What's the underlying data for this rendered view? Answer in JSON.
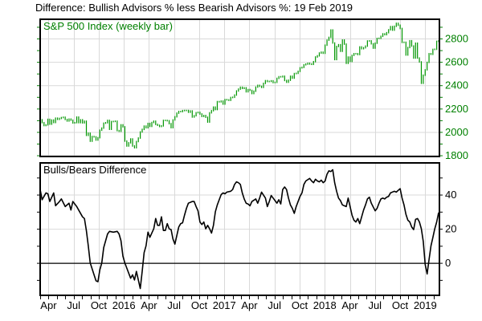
{
  "title": "Difference: Bullish Advisors % less Bearish Advisors %: 19 Feb 2019",
  "panels": {
    "sp500": {
      "label": "S&P 500 Index (weekly bar)",
      "label_color": "#008000"
    },
    "bulls_bears": {
      "label": "Bulls/Bears Difference",
      "label_color": "#000000"
    }
  },
  "x_axis": {
    "labels": [
      "Apr",
      "Jul",
      "Oct",
      "2016",
      "Apr",
      "Jul",
      "Oct",
      "2017",
      "Apr",
      "Jul",
      "Oct",
      "2018",
      "Apr",
      "Jul",
      "Oct",
      "2019"
    ],
    "label_months": [
      1,
      4,
      7,
      10,
      13,
      16,
      19,
      22,
      25,
      28,
      31,
      34,
      37,
      40,
      43,
      46
    ],
    "months_total": 48,
    "weeks_total": 207,
    "weeks_per_month": 4.348
  },
  "colors": {
    "grid": "#d9d9d9",
    "border": "#000000",
    "background": "#ffffff"
  },
  "chart_data": [
    {
      "type": "bar",
      "name": "S&P 500 Index (weekly bar)",
      "x_unit": "week (Mar 2015 - 19 Feb 2019)",
      "y_min": 1790,
      "y_max": 2965,
      "y_labels": [
        1800,
        2000,
        2200,
        2400,
        2600,
        2800
      ],
      "y_minor_step": 100,
      "color": "#009600",
      "axis_color": "#008000",
      "values": [
        2104,
        2080,
        2055,
        2061,
        2108,
        2067,
        2102,
        2081,
        2118,
        2108,
        2116,
        2123,
        2126,
        2107,
        2094,
        2110,
        2101,
        2077,
        2080,
        2127,
        2080,
        2104,
        2078,
        2092,
        1971,
        1989,
        1921,
        1961,
        1958,
        1931,
        1951,
        2015,
        2033,
        2075,
        2079,
        2099,
        2023,
        2089,
        2090,
        2092,
        2012,
        2006,
        2061,
        2044,
        1922,
        1880,
        1907,
        1940,
        1880,
        1865,
        1918,
        1948,
        2000,
        2022,
        2050,
        2036,
        2073,
        2048,
        2081,
        2092,
        2065,
        2057,
        2047,
        2052,
        2099,
        2099,
        2096,
        2071,
        2037,
        2103,
        2130,
        2161,
        2175,
        2174,
        2183,
        2184,
        2184,
        2169,
        2180,
        2128,
        2139,
        2165,
        2168,
        2154,
        2133,
        2141,
        2126,
        2085,
        2164,
        2182,
        2213,
        2192,
        2260,
        2258,
        2264,
        2239,
        2277,
        2275,
        2271,
        2295,
        2297,
        2316,
        2351,
        2367,
        2383,
        2373,
        2378,
        2344,
        2363,
        2356,
        2329,
        2349,
        2384,
        2399,
        2391,
        2382,
        2416,
        2439,
        2432,
        2433,
        2438,
        2423,
        2425,
        2459,
        2473,
        2472,
        2477,
        2441,
        2426,
        2443,
        2477,
        2461,
        2500,
        2502,
        2519,
        2549,
        2553,
        2575,
        2581,
        2588,
        2582,
        2579,
        2602,
        2642,
        2652,
        2676,
        2683,
        2674,
        2743,
        2786,
        2810,
        2873,
        2762,
        2620,
        2732,
        2747,
        2691,
        2787,
        2752,
        2588,
        2641,
        2604,
        2656,
        2670,
        2670,
        2663,
        2728,
        2713,
        2721,
        2735,
        2779,
        2780,
        2755,
        2718,
        2760,
        2801,
        2802,
        2819,
        2840,
        2833,
        2850,
        2875,
        2902,
        2872,
        2905,
        2930,
        2914,
        2886,
        2767,
        2768,
        2659,
        2723,
        2781,
        2736,
        2633,
        2760,
        2633,
        2600,
        2417,
        2486,
        2532,
        2596,
        2670,
        2665,
        2707,
        2708,
        2776,
        2780
      ]
    },
    {
      "type": "line",
      "name": "Bulls/Bears Difference",
      "x_unit": "week (Mar 2015 - 19 Feb 2019)",
      "y_min": -19,
      "y_max": 58.6,
      "y_labels": [
        0,
        20,
        40
      ],
      "y_minor_step": 10,
      "zero_line": 0,
      "color": "#000000",
      "axis_color": "#000000",
      "points": [
        [
          0,
          43
        ],
        [
          1,
          37
        ],
        [
          2,
          39
        ],
        [
          3,
          41
        ],
        [
          4,
          40.5
        ],
        [
          5,
          36
        ],
        [
          7,
          41
        ],
        [
          8,
          33.5
        ],
        [
          10,
          36
        ],
        [
          11,
          37.5
        ],
        [
          13,
          33
        ],
        [
          15,
          35
        ],
        [
          16,
          31
        ],
        [
          17,
          36
        ],
        [
          19,
          33
        ],
        [
          20,
          31
        ],
        [
          22,
          27
        ],
        [
          23,
          26
        ],
        [
          24,
          19
        ],
        [
          25,
          10
        ],
        [
          26,
          0
        ],
        [
          28,
          -7
        ],
        [
          29,
          -10.5
        ],
        [
          30,
          -11
        ],
        [
          31,
          -4
        ],
        [
          32,
          0
        ],
        [
          33,
          9
        ],
        [
          35,
          17
        ],
        [
          36,
          18.5
        ],
        [
          38,
          18
        ],
        [
          40,
          18.5
        ],
        [
          41,
          17
        ],
        [
          42,
          13
        ],
        [
          43,
          4
        ],
        [
          44,
          0
        ],
        [
          45,
          -3
        ],
        [
          47,
          -9
        ],
        [
          48,
          -7
        ],
        [
          49,
          -10
        ],
        [
          50,
          -5
        ],
        [
          52,
          -15
        ],
        [
          53,
          -5
        ],
        [
          54,
          6
        ],
        [
          55,
          10
        ],
        [
          56,
          18
        ],
        [
          57,
          15
        ],
        [
          59,
          20
        ],
        [
          60,
          26
        ],
        [
          61,
          22
        ],
        [
          62,
          22
        ],
        [
          63,
          27
        ],
        [
          64,
          19
        ],
        [
          65,
          19
        ],
        [
          66,
          23
        ],
        [
          67,
          20
        ],
        [
          68,
          19.5
        ],
        [
          69,
          14
        ],
        [
          70,
          11
        ],
        [
          71,
          16
        ],
        [
          72,
          21
        ],
        [
          73,
          23
        ],
        [
          74,
          23.5
        ],
        [
          75,
          28
        ],
        [
          76,
          32
        ],
        [
          77,
          35
        ],
        [
          79,
          36
        ],
        [
          80,
          36
        ],
        [
          81,
          33
        ],
        [
          82,
          30.5
        ],
        [
          83,
          24
        ],
        [
          84,
          22.5
        ],
        [
          85,
          24
        ],
        [
          86,
          20
        ],
        [
          87,
          22
        ],
        [
          88,
          20
        ],
        [
          89,
          17.5
        ],
        [
          90,
          22
        ],
        [
          91,
          30
        ],
        [
          92,
          34
        ],
        [
          93,
          37
        ],
        [
          94,
          40
        ],
        [
          95,
          41
        ],
        [
          96,
          40.5
        ],
        [
          97,
          41.5
        ],
        [
          99,
          42
        ],
        [
          100,
          43
        ],
        [
          101,
          46
        ],
        [
          102,
          47.5
        ],
        [
          103,
          47
        ],
        [
          104,
          46
        ],
        [
          105,
          41
        ],
        [
          106,
          37.5
        ],
        [
          107,
          35
        ],
        [
          108,
          34.5
        ],
        [
          109,
          33.5
        ],
        [
          110,
          36
        ],
        [
          112,
          37.5
        ],
        [
          113,
          35
        ],
        [
          114,
          38
        ],
        [
          115,
          41.5
        ],
        [
          117,
          38
        ],
        [
          118,
          33
        ],
        [
          119,
          36
        ],
        [
          120,
          39.5
        ],
        [
          121,
          38
        ],
        [
          122,
          36.5
        ],
        [
          123,
          35
        ],
        [
          124,
          37
        ],
        [
          125,
          34.5
        ],
        [
          126,
          43
        ],
        [
          127,
          44.5
        ],
        [
          128,
          43
        ],
        [
          129,
          38
        ],
        [
          130,
          34
        ],
        [
          131,
          32
        ],
        [
          132,
          29
        ],
        [
          133,
          33
        ],
        [
          135,
          39
        ],
        [
          136,
          41
        ],
        [
          137,
          46
        ],
        [
          138,
          48
        ],
        [
          140,
          49.5
        ],
        [
          141,
          48
        ],
        [
          142,
          47
        ],
        [
          143,
          49
        ],
        [
          144,
          48
        ],
        [
          145,
          47.5
        ],
        [
          146,
          48.5
        ],
        [
          147,
          47
        ],
        [
          148,
          48
        ],
        [
          149,
          52
        ],
        [
          150,
          54
        ],
        [
          151,
          53.5
        ],
        [
          152,
          54.6
        ],
        [
          153,
          47
        ],
        [
          154,
          42
        ],
        [
          155,
          38
        ],
        [
          156,
          36.5
        ],
        [
          157,
          34
        ],
        [
          158,
          33.5
        ],
        [
          159,
          33
        ],
        [
          160,
          38
        ],
        [
          161,
          33
        ],
        [
          162,
          28
        ],
        [
          163,
          25
        ],
        [
          164,
          24
        ],
        [
          165,
          26
        ],
        [
          166,
          23
        ],
        [
          167,
          27
        ],
        [
          168,
          31
        ],
        [
          169,
          34
        ],
        [
          170,
          37.5
        ],
        [
          171,
          38.5
        ],
        [
          172,
          35
        ],
        [
          174,
          30.5
        ],
        [
          175,
          32
        ],
        [
          176,
          35
        ],
        [
          177,
          37.5
        ],
        [
          178,
          38
        ],
        [
          179,
          37.5
        ],
        [
          180,
          38.5
        ],
        [
          181,
          39
        ],
        [
          182,
          41
        ],
        [
          184,
          42
        ],
        [
          185,
          41.5
        ],
        [
          186,
          42.5
        ],
        [
          187,
          43.5
        ],
        [
          188,
          38
        ],
        [
          189,
          34
        ],
        [
          190,
          28.5
        ],
        [
          191,
          25
        ],
        [
          192,
          24
        ],
        [
          193,
          21
        ],
        [
          194,
          19.5
        ],
        [
          195,
          25.5
        ],
        [
          196,
          26
        ],
        [
          197,
          24
        ],
        [
          198,
          20
        ],
        [
          199,
          12.5
        ],
        [
          200,
          -1
        ],
        [
          201,
          -6.5
        ],
        [
          202,
          2
        ],
        [
          203,
          10
        ],
        [
          204,
          15
        ],
        [
          205,
          20
        ],
        [
          206,
          24
        ],
        [
          207,
          29.5
        ]
      ]
    }
  ]
}
